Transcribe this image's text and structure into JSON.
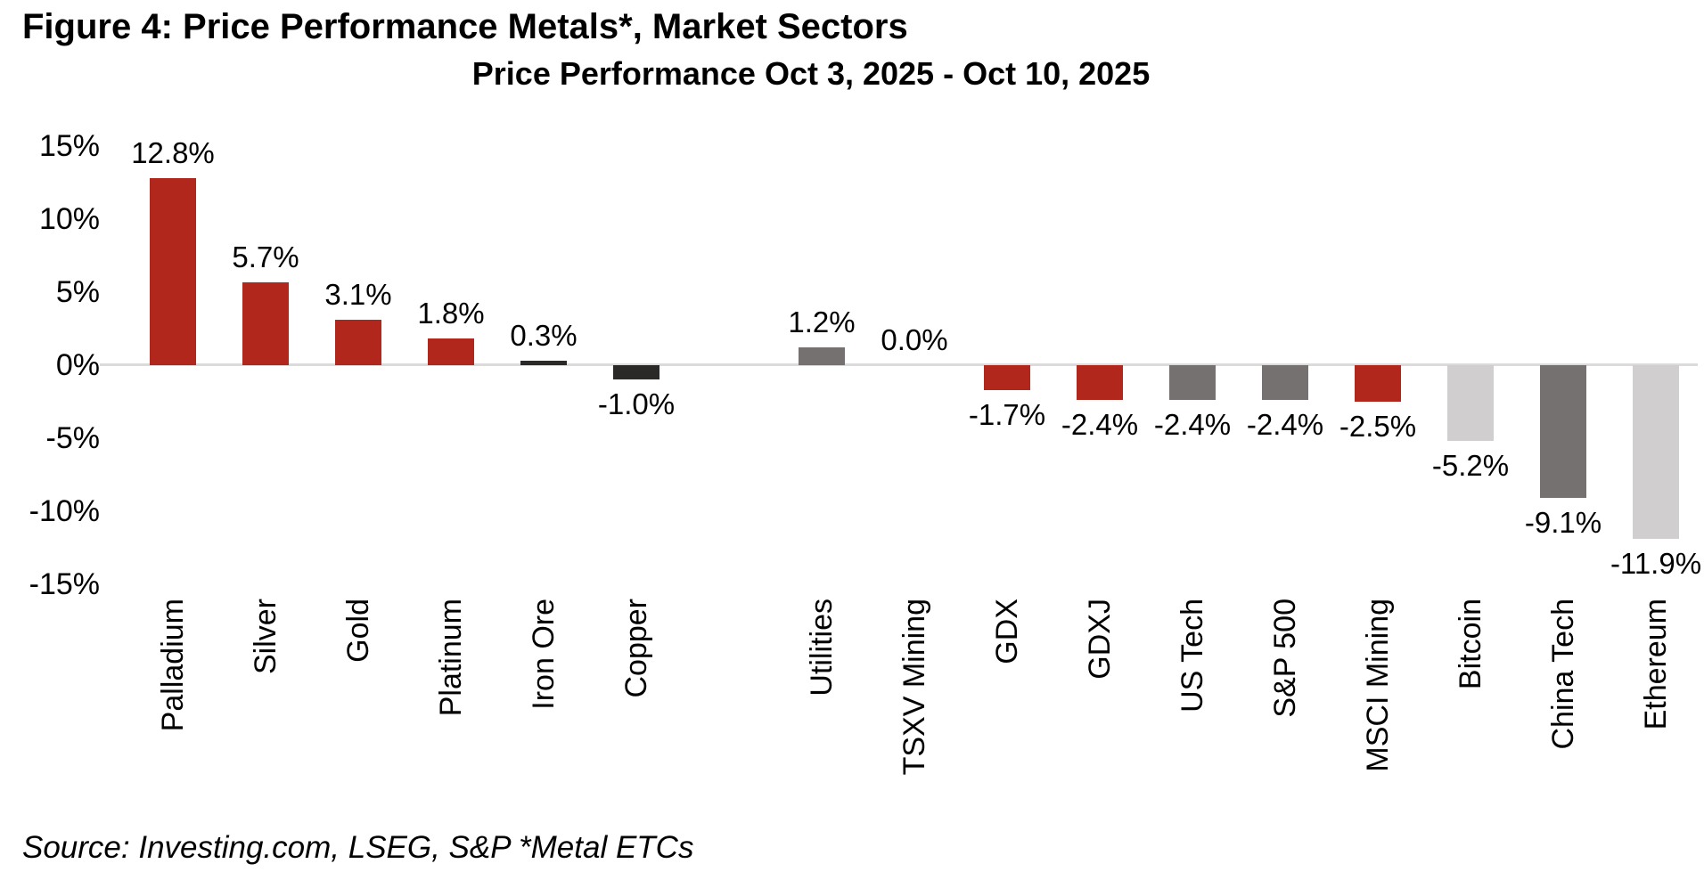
{
  "figure": {
    "title": "Figure 4: Price Performance Metals*, Market Sectors",
    "subtitle": "Price Performance Oct 3, 2025 - Oct 10, 2025",
    "source": "Source: Investing.com, LSEG, S&P *Metal ETCs"
  },
  "chart_data": {
    "type": "bar",
    "title": "Price Performance Oct 3, 2025 - Oct 10, 2025",
    "figure_title": "Figure 4: Price Performance Metals*, Market Sectors",
    "xlabel": "",
    "ylabel": "",
    "ylim": [
      -15,
      15
    ],
    "yticks": [
      {
        "value": 15,
        "label": "15%"
      },
      {
        "value": 10,
        "label": "10%"
      },
      {
        "value": 5,
        "label": "5%"
      },
      {
        "value": 0,
        "label": "0%"
      },
      {
        "value": -5,
        "label": "-5%"
      },
      {
        "value": -10,
        "label": "-10%"
      },
      {
        "value": -15,
        "label": "-15%"
      }
    ],
    "grid": false,
    "legend": "none",
    "groups": [
      {
        "name": "Metals",
        "items": [
          {
            "category": "Palladium",
            "value": 12.8,
            "label": "12.8%",
            "color": "red"
          },
          {
            "category": "Silver",
            "value": 5.7,
            "label": "5.7%",
            "color": "red"
          },
          {
            "category": "Gold",
            "value": 3.1,
            "label": "3.1%",
            "color": "red"
          },
          {
            "category": "Platinum",
            "value": 1.8,
            "label": "1.8%",
            "color": "red"
          },
          {
            "category": "Iron Ore",
            "value": 0.3,
            "label": "0.3%",
            "color": "charcoal"
          },
          {
            "category": "Copper",
            "value": -1.0,
            "label": "-1.0%",
            "color": "charcoal"
          }
        ]
      },
      {
        "name": "Market Sectors",
        "items": [
          {
            "category": "Utilities",
            "value": 1.2,
            "label": "1.2%",
            "color": "gray"
          },
          {
            "category": "TSXV Mining",
            "value": 0.0,
            "label": "0.0%",
            "color": "gray"
          },
          {
            "category": "GDX",
            "value": -1.7,
            "label": "-1.7%",
            "color": "red"
          },
          {
            "category": "GDXJ",
            "value": -2.4,
            "label": "-2.4%",
            "color": "red"
          },
          {
            "category": "US Tech",
            "value": -2.4,
            "label": "-2.4%",
            "color": "gray"
          },
          {
            "category": "S&P 500",
            "value": -2.4,
            "label": "-2.4%",
            "color": "gray"
          },
          {
            "category": "MSCI Mining",
            "value": -2.5,
            "label": "-2.5%",
            "color": "red"
          },
          {
            "category": "Bitcoin",
            "value": -5.2,
            "label": "-5.2%",
            "color": "light_gray"
          },
          {
            "category": "China Tech",
            "value": -9.1,
            "label": "-9.1%",
            "color": "gray"
          },
          {
            "category": "Ethereum",
            "value": -11.9,
            "label": "-11.9%",
            "color": "light_gray"
          }
        ]
      }
    ],
    "bar_colors_hex": {
      "red": "#B1271B",
      "charcoal": "#2B2828",
      "gray": "#767171",
      "light_gray": "#D0CECE"
    },
    "baseline_color": "#DBDBDB",
    "text_color": "#000000"
  }
}
